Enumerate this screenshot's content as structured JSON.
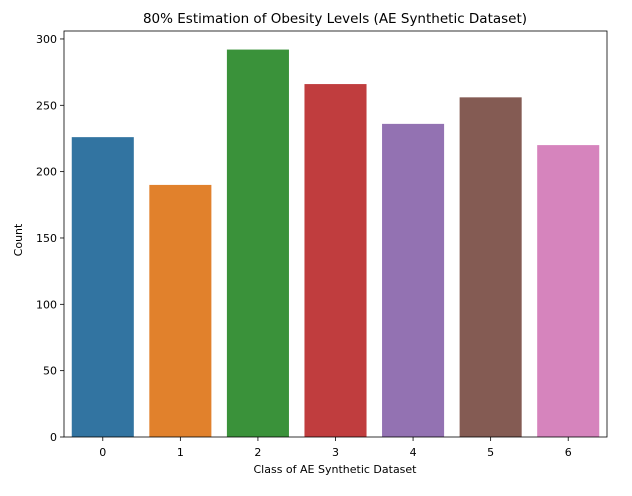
{
  "chart_data": {
    "type": "bar",
    "title": "80% Estimation of Obesity Levels (AE Synthetic Dataset)",
    "xlabel": "Class of AE Synthetic Dataset",
    "ylabel": "Count",
    "categories": [
      "0",
      "1",
      "2",
      "3",
      "4",
      "5",
      "6"
    ],
    "values": [
      226,
      190,
      292,
      266,
      236,
      256,
      220
    ],
    "colors": [
      "#3274a1",
      "#e1812c",
      "#3a923a",
      "#c03d3e",
      "#9372b2",
      "#845b53",
      "#d684bd"
    ],
    "ylim": [
      0,
      306
    ],
    "yticks": [
      0,
      50,
      100,
      150,
      200,
      250,
      300
    ],
    "grid": false,
    "legend": "none"
  }
}
